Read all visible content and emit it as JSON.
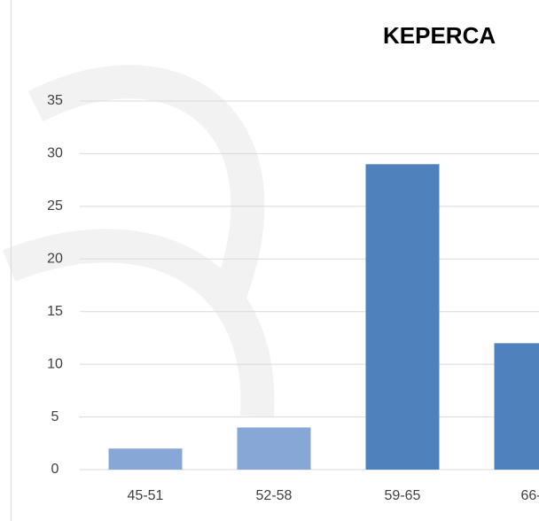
{
  "chart_data": {
    "type": "bar",
    "title": "KEPERCA",
    "categories": [
      "45-51",
      "52-58",
      "59-65",
      "66-"
    ],
    "values": [
      2,
      4,
      29,
      12
    ],
    "colors": [
      "#87a7d6",
      "#87a7d6",
      "#4f81bd",
      "#4f81bd"
    ],
    "ylim": [
      0,
      35
    ],
    "yticks": [
      0,
      5,
      10,
      15,
      20,
      25,
      30,
      35
    ],
    "grid": true
  }
}
